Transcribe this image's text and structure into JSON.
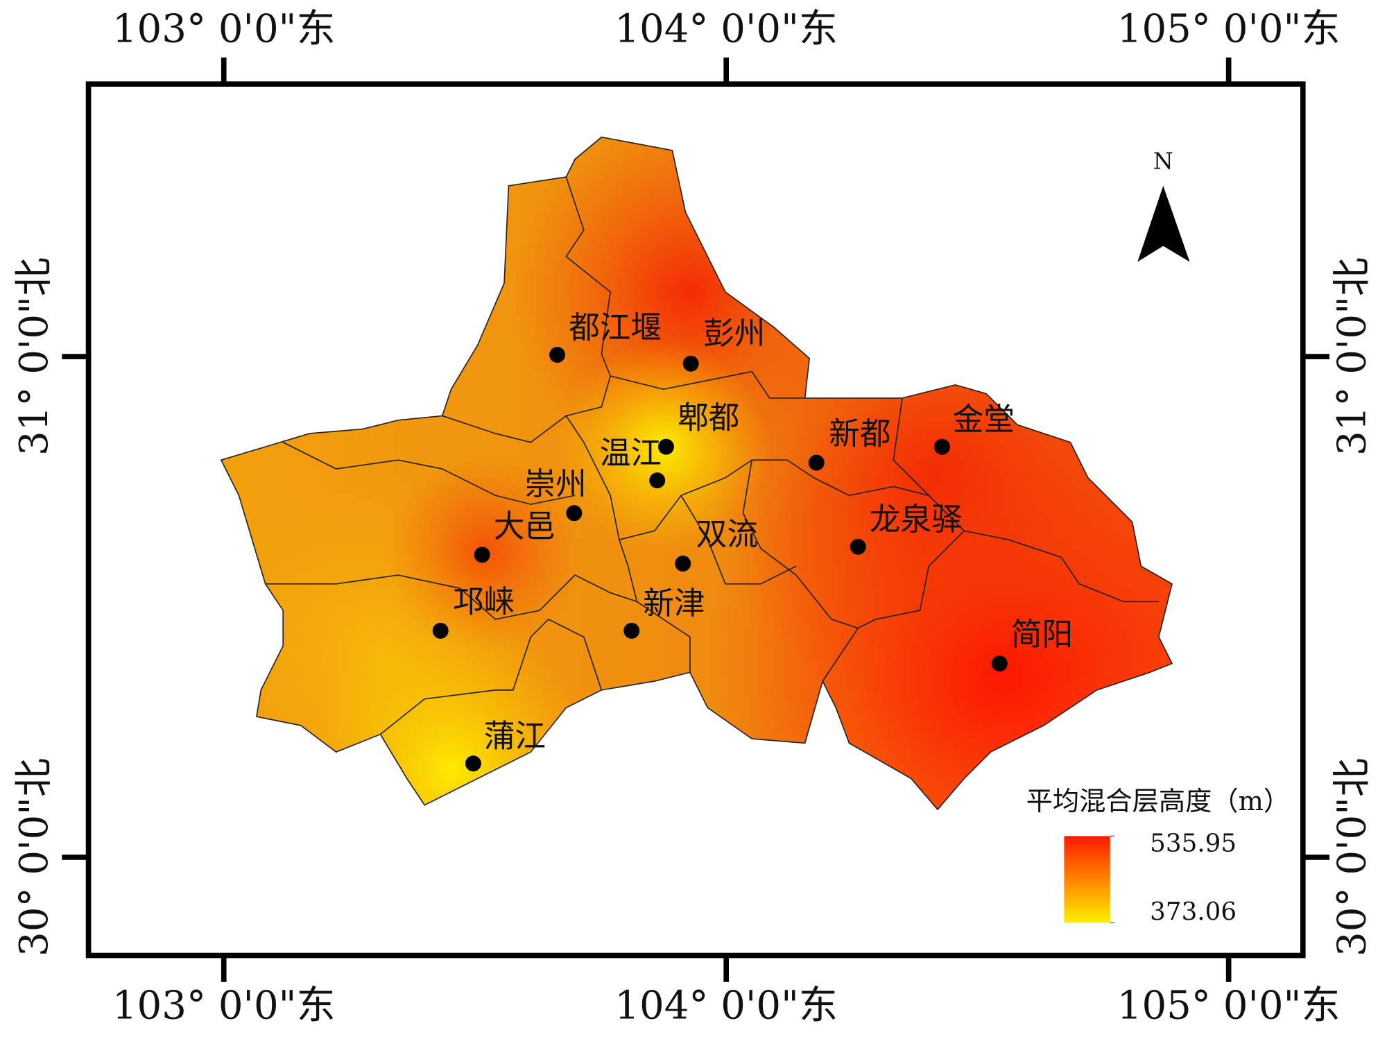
{
  "graticule": {
    "lon_ticks": [
      {
        "value": 103,
        "label": "103° 0'0\"东"
      },
      {
        "value": 104,
        "label": "104° 0'0\"东"
      },
      {
        "value": 105,
        "label": "105° 0'0\"东"
      }
    ],
    "lat_ticks": [
      {
        "value": 31,
        "label": "31° 0'0\"北"
      },
      {
        "value": 30,
        "label": "30° 0'0\"北"
      }
    ]
  },
  "north": "N",
  "legend": {
    "title": "平均混合层高度（m）",
    "max": 535.95,
    "min": 373.06,
    "colors": [
      "#ff1a00",
      "#ffee00"
    ]
  },
  "stations": [
    {
      "name": "都江堰"
    },
    {
      "name": "彭州"
    },
    {
      "name": "郫都"
    },
    {
      "name": "温江"
    },
    {
      "name": "崇州"
    },
    {
      "name": "大邑"
    },
    {
      "name": "新都"
    },
    {
      "name": "金堂"
    },
    {
      "name": "龙泉驿"
    },
    {
      "name": "双流"
    },
    {
      "name": "新津"
    },
    {
      "name": "邛崃"
    },
    {
      "name": "简阳"
    },
    {
      "name": "蒲江"
    }
  ]
}
